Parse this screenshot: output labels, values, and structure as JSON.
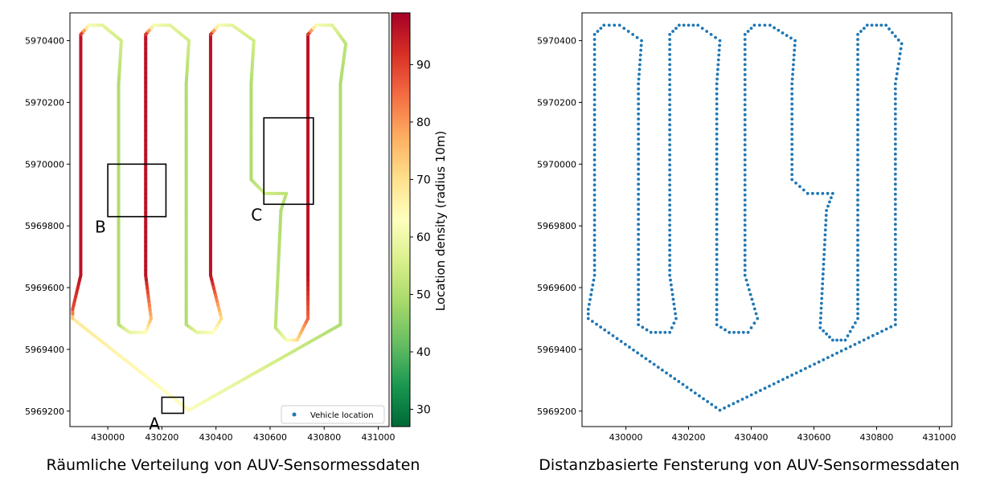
{
  "chart_data": [
    {
      "type": "scatter",
      "caption": "Räumliche Verteilung von AUV-Sensormessdaten",
      "title": "",
      "xlabel": "",
      "ylabel": "",
      "xlim": [
        429860,
        431040
      ],
      "ylim": [
        5969150,
        5970490
      ],
      "xticks": [
        430000,
        430200,
        430400,
        430600,
        430800,
        431000
      ],
      "yticks": [
        5969200,
        5969400,
        5969600,
        5969800,
        5970000,
        5970200,
        5970400
      ],
      "colorbar": {
        "label": "Location density (radius 10m)",
        "range": [
          27,
          99
        ],
        "ticks": [
          30,
          40,
          50,
          60,
          70,
          80,
          90
        ],
        "colormap": [
          "#006837",
          "#1a9850",
          "#66bd63",
          "#a6d96a",
          "#d9ef8b",
          "#ffffbf",
          "#fee08b",
          "#fdae61",
          "#f46d43",
          "#d73027",
          "#a50026"
        ]
      },
      "legend": {
        "entries": [
          "Vehicle location"
        ],
        "placement": "lower right",
        "marker_color": "#1f77b4"
      },
      "regions": [
        {
          "label": "A",
          "x": [
            430200,
            430280
          ],
          "y": [
            5969193,
            5969245
          ]
        },
        {
          "label": "B",
          "x": [
            430000,
            430215
          ],
          "y": [
            5969830,
            5970000
          ]
        },
        {
          "label": "C",
          "x": [
            430577,
            430760
          ],
          "y": [
            5969870,
            5970150
          ]
        }
      ],
      "track": [
        {
          "x": 430300,
          "y": 5969203,
          "density": 62
        },
        {
          "x": 429870,
          "y": 5969500,
          "density": 68
        },
        {
          "x": 429870,
          "y": 5969530,
          "density": 88
        },
        {
          "x": 429900,
          "y": 5969640,
          "density": 96
        },
        {
          "x": 429900,
          "y": 5970420,
          "density": 96
        },
        {
          "x": 429930,
          "y": 5970450,
          "density": 62
        },
        {
          "x": 429980,
          "y": 5970450,
          "density": 58
        },
        {
          "x": 430050,
          "y": 5970400,
          "density": 55
        },
        {
          "x": 430040,
          "y": 5970260,
          "density": 50
        },
        {
          "x": 430040,
          "y": 5969480,
          "density": 50
        },
        {
          "x": 430080,
          "y": 5969455,
          "density": 58
        },
        {
          "x": 430140,
          "y": 5969455,
          "density": 62
        },
        {
          "x": 430160,
          "y": 5969500,
          "density": 75
        },
        {
          "x": 430140,
          "y": 5969640,
          "density": 96
        },
        {
          "x": 430140,
          "y": 5970420,
          "density": 96
        },
        {
          "x": 430170,
          "y": 5970450,
          "density": 62
        },
        {
          "x": 430230,
          "y": 5970450,
          "density": 58
        },
        {
          "x": 430300,
          "y": 5970400,
          "density": 55
        },
        {
          "x": 430290,
          "y": 5970260,
          "density": 50
        },
        {
          "x": 430290,
          "y": 5969480,
          "density": 50
        },
        {
          "x": 430330,
          "y": 5969455,
          "density": 58
        },
        {
          "x": 430390,
          "y": 5969455,
          "density": 62
        },
        {
          "x": 430420,
          "y": 5969500,
          "density": 70
        },
        {
          "x": 430380,
          "y": 5969640,
          "density": 96
        },
        {
          "x": 430380,
          "y": 5970420,
          "density": 96
        },
        {
          "x": 430410,
          "y": 5970450,
          "density": 62
        },
        {
          "x": 430460,
          "y": 5970450,
          "density": 58
        },
        {
          "x": 430540,
          "y": 5970400,
          "density": 55
        },
        {
          "x": 430530,
          "y": 5970260,
          "density": 50
        },
        {
          "x": 430530,
          "y": 5969950,
          "density": 50
        },
        {
          "x": 430580,
          "y": 5969905,
          "density": 55
        },
        {
          "x": 430660,
          "y": 5969905,
          "density": 52
        },
        {
          "x": 430640,
          "y": 5969850,
          "density": 50
        },
        {
          "x": 430620,
          "y": 5969470,
          "density": 52
        },
        {
          "x": 430660,
          "y": 5969430,
          "density": 60
        },
        {
          "x": 430700,
          "y": 5969430,
          "density": 70
        },
        {
          "x": 430740,
          "y": 5969500,
          "density": 85
        },
        {
          "x": 430740,
          "y": 5969640,
          "density": 96
        },
        {
          "x": 430740,
          "y": 5970420,
          "density": 96
        },
        {
          "x": 430770,
          "y": 5970450,
          "density": 62
        },
        {
          "x": 430830,
          "y": 5970450,
          "density": 58
        },
        {
          "x": 430880,
          "y": 5970390,
          "density": 52
        },
        {
          "x": 430860,
          "y": 5970260,
          "density": 50
        },
        {
          "x": 430860,
          "y": 5969480,
          "density": 50
        },
        {
          "x": 430300,
          "y": 5969203,
          "density": 62
        }
      ]
    },
    {
      "type": "scatter",
      "caption": "Distanzbasierte Fensterung von AUV-Sensormessdaten",
      "title": "",
      "xlabel": "",
      "ylabel": "",
      "xlim": [
        429860,
        431040
      ],
      "ylim": [
        5969150,
        5970490
      ],
      "xticks": [
        430000,
        430200,
        430400,
        430600,
        430800,
        431000
      ],
      "yticks": [
        5969200,
        5969400,
        5969600,
        5969800,
        5970000,
        5970200,
        5970400
      ],
      "marker_color": "#1f77b4",
      "track": [
        {
          "x": 430300,
          "y": 5969203
        },
        {
          "x": 429880,
          "y": 5969500
        },
        {
          "x": 429880,
          "y": 5969530
        },
        {
          "x": 429900,
          "y": 5969640
        },
        {
          "x": 429900,
          "y": 5970420
        },
        {
          "x": 429930,
          "y": 5970450
        },
        {
          "x": 429980,
          "y": 5970450
        },
        {
          "x": 430050,
          "y": 5970400
        },
        {
          "x": 430040,
          "y": 5970260
        },
        {
          "x": 430040,
          "y": 5969480
        },
        {
          "x": 430080,
          "y": 5969455
        },
        {
          "x": 430140,
          "y": 5969455
        },
        {
          "x": 430160,
          "y": 5969500
        },
        {
          "x": 430140,
          "y": 5969640
        },
        {
          "x": 430140,
          "y": 5970420
        },
        {
          "x": 430170,
          "y": 5970450
        },
        {
          "x": 430230,
          "y": 5970450
        },
        {
          "x": 430300,
          "y": 5970400
        },
        {
          "x": 430290,
          "y": 5970260
        },
        {
          "x": 430290,
          "y": 5969480
        },
        {
          "x": 430330,
          "y": 5969455
        },
        {
          "x": 430390,
          "y": 5969455
        },
        {
          "x": 430420,
          "y": 5969500
        },
        {
          "x": 430380,
          "y": 5969640
        },
        {
          "x": 430380,
          "y": 5970420
        },
        {
          "x": 430410,
          "y": 5970450
        },
        {
          "x": 430460,
          "y": 5970450
        },
        {
          "x": 430540,
          "y": 5970400
        },
        {
          "x": 430530,
          "y": 5970260
        },
        {
          "x": 430530,
          "y": 5969950
        },
        {
          "x": 430580,
          "y": 5969905
        },
        {
          "x": 430660,
          "y": 5969905
        },
        {
          "x": 430640,
          "y": 5969850
        },
        {
          "x": 430620,
          "y": 5969470
        },
        {
          "x": 430660,
          "y": 5969430
        },
        {
          "x": 430700,
          "y": 5969430
        },
        {
          "x": 430740,
          "y": 5969500
        },
        {
          "x": 430740,
          "y": 5969640
        },
        {
          "x": 430740,
          "y": 5970420
        },
        {
          "x": 430770,
          "y": 5970450
        },
        {
          "x": 430830,
          "y": 5970450
        },
        {
          "x": 430880,
          "y": 5970390
        },
        {
          "x": 430860,
          "y": 5970260
        },
        {
          "x": 430860,
          "y": 5969480
        },
        {
          "x": 430300,
          "y": 5969203
        }
      ]
    }
  ]
}
